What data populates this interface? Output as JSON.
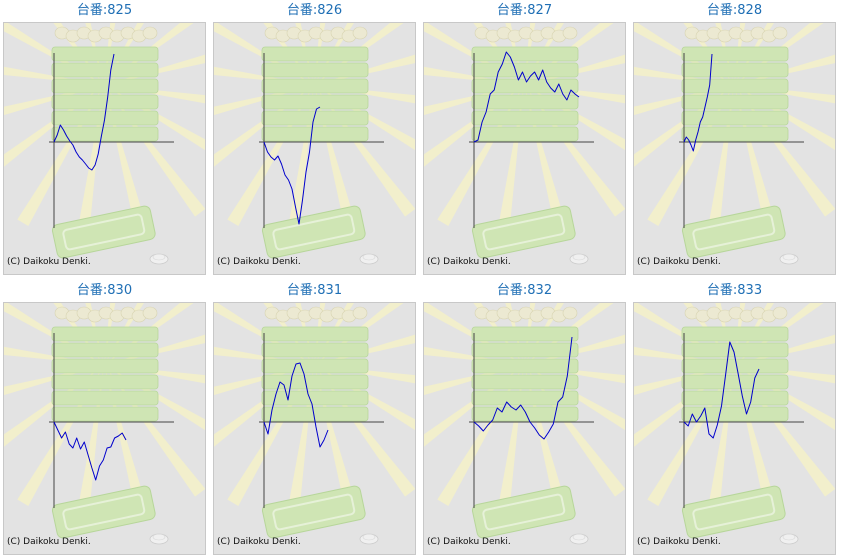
{
  "copyright": "(C) Daikoku Denki.",
  "colors": {
    "title": "#1f6fb5",
    "line": "#0000cc",
    "axis": "#444444",
    "panel_bg": "#e3e3e3",
    "rays": "#f4f1c8",
    "machine": "#cfe5b4"
  },
  "machines": [
    {
      "label": "台番:825"
    },
    {
      "label": "台番:826"
    },
    {
      "label": "台番:827"
    },
    {
      "label": "台番:828"
    },
    {
      "label": "台番:830"
    },
    {
      "label": "台番:831"
    },
    {
      "label": "台番:832"
    },
    {
      "label": "台番:833"
    }
  ],
  "chart_data": [
    {
      "type": "line",
      "series": [
        {
          "values": [
            0,
            7,
            17,
            12,
            6,
            1,
            -3,
            -10,
            -15,
            -18,
            -22,
            -26,
            -28,
            -23,
            -12,
            6,
            22,
            45,
            72,
            88
          ]
        }
      ]
    },
    {
      "type": "line",
      "series": [
        {
          "values": [
            0,
            -10,
            -15,
            -18,
            -14,
            -22,
            -33,
            -38,
            -47,
            -65,
            -82,
            -58,
            -30,
            -10,
            20,
            33,
            35
          ]
        }
      ]
    },
    {
      "type": "line",
      "series": [
        {
          "values": [
            0,
            2,
            20,
            30,
            48,
            52,
            70,
            78,
            90,
            85,
            75,
            62,
            70,
            60,
            66,
            70,
            62,
            72,
            60,
            54,
            50,
            58,
            48,
            42,
            52,
            48,
            45
          ]
        }
      ]
    },
    {
      "type": "line",
      "series": [
        {
          "values": [
            0,
            5,
            2,
            -3,
            -9,
            2,
            10,
            20,
            25,
            35,
            45,
            57,
            88
          ]
        }
      ]
    },
    {
      "type": "line",
      "series": [
        {
          "values": [
            0,
            -8,
            -16,
            -10,
            -22,
            -26,
            -16,
            -27,
            -20,
            -33,
            -46,
            -58,
            -44,
            -38,
            -26,
            -25,
            -16,
            -14,
            -11,
            -18
          ]
        }
      ]
    },
    {
      "type": "line",
      "series": [
        {
          "values": [
            0,
            -12,
            12,
            28,
            40,
            37,
            22,
            46,
            58,
            59,
            48,
            28,
            18,
            -5,
            -25,
            -18,
            -8
          ]
        }
      ]
    },
    {
      "type": "line",
      "series": [
        {
          "values": [
            0,
            -4,
            -9,
            -3,
            2,
            14,
            10,
            20,
            15,
            12,
            17,
            10,
            0,
            -6,
            -13,
            -17,
            -10,
            -2,
            20,
            25,
            46,
            85
          ]
        }
      ]
    },
    {
      "type": "line",
      "series": [
        {
          "values": [
            0,
            -4,
            8,
            0,
            6,
            14,
            -12,
            -16,
            -3,
            16,
            48,
            80,
            70,
            48,
            26,
            8,
            20,
            44,
            53
          ]
        }
      ]
    }
  ]
}
